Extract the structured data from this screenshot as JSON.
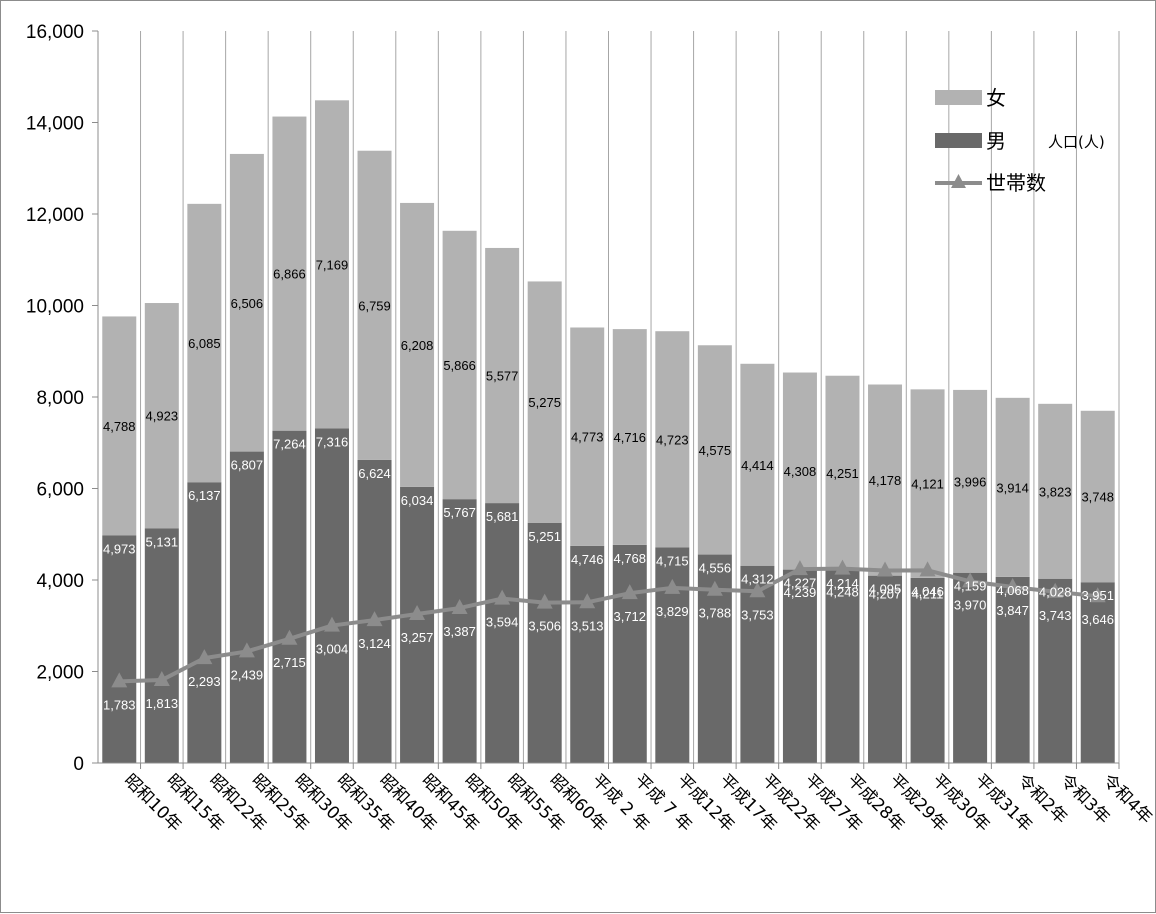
{
  "chart_data": {
    "type": "bar",
    "stacked": true,
    "categories": [
      "昭和10年",
      "昭和15年",
      "昭和22年",
      "昭和25年",
      "昭和30年",
      "昭和35年",
      "昭和40年",
      "昭和45年",
      "昭和50年",
      "昭和55年",
      "昭和60年",
      "平成 2 年",
      "平成 7 年",
      "平成12年",
      "平成17年",
      "平成22年",
      "平成27年",
      "平成28年",
      "平成29年",
      "平成30年",
      "平成31年",
      "令和2年",
      "令和3年",
      "令和4年"
    ],
    "series": [
      {
        "name": "男",
        "kind": "bar",
        "color": "#696969",
        "values": [
          4973,
          5131,
          6137,
          6807,
          7264,
          7316,
          6624,
          6034,
          5767,
          5681,
          5251,
          4746,
          4768,
          4715,
          4556,
          4312,
          4227,
          4214,
          4095,
          4046,
          4159,
          4068,
          4028,
          3951
        ]
      },
      {
        "name": "女",
        "kind": "bar",
        "color": "#b2b2b2",
        "values": [
          4788,
          4923,
          6085,
          6506,
          6866,
          7169,
          6759,
          6208,
          5866,
          5577,
          5275,
          4773,
          4716,
          4723,
          4575,
          4414,
          4308,
          4251,
          4178,
          4121,
          3996,
          3914,
          3823,
          3748
        ]
      },
      {
        "name": "世帯数",
        "kind": "line",
        "marker": "triangle",
        "color": "#8c8c8c",
        "values": [
          1783,
          1813,
          2293,
          2439,
          2715,
          3004,
          3124,
          3257,
          3387,
          3594,
          3506,
          3513,
          3712,
          3829,
          3788,
          3753,
          4239,
          4248,
          4207,
          4211,
          3970,
          3847,
          3743,
          3646
        ]
      }
    ],
    "ylabel": "人口(人)",
    "ylim": [
      0,
      16000
    ],
    "yticks": [
      "0",
      "2,000",
      "4,000",
      "6,000",
      "8,000",
      "10,000",
      "12,000",
      "14,000",
      "16,000"
    ],
    "grid": "vertical",
    "legend": {
      "position": "top-right",
      "entries": [
        "女",
        "男",
        "世帯数"
      ]
    }
  }
}
